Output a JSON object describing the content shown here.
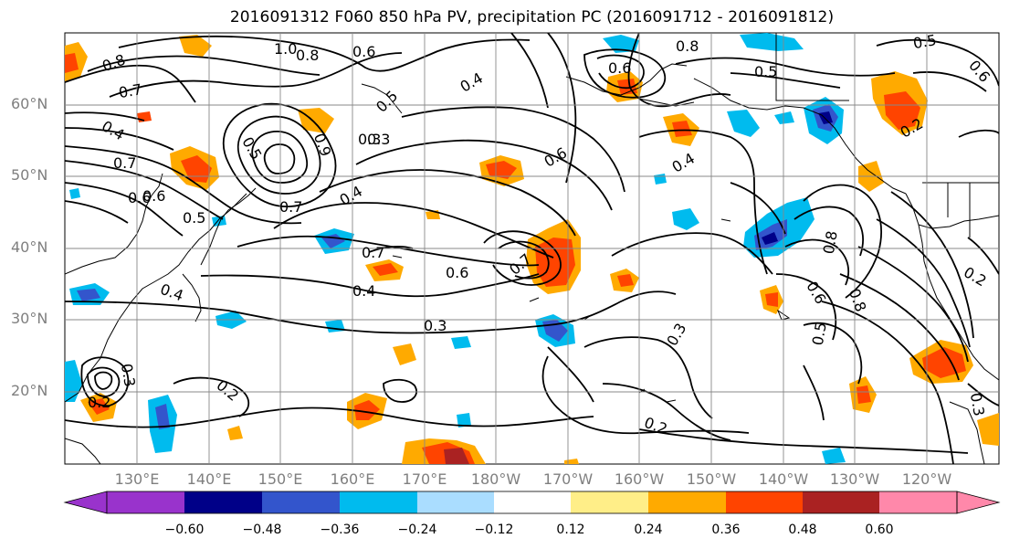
{
  "title": "2016091312 F060 850 hPa PV, precipitation PC (2016091712 - 2016091812)",
  "lat_labels": [
    "60°N",
    "50°N",
    "40°N",
    "30°N",
    "20°N"
  ],
  "lon_labels": [
    "130°E",
    "140°E",
    "150°E",
    "160°E",
    "170°E",
    "180°W",
    "170°W",
    "160°W",
    "150°W",
    "140°W",
    "130°W",
    "120°W"
  ],
  "contour_labels": [
    "1.0",
    "0.8",
    "0.6",
    "0.8",
    "0.5",
    "0.6",
    "0.8",
    "0.7",
    "0.4",
    "0.5",
    "0.3",
    "0.6",
    "0.5",
    "0.9",
    "0.7",
    "0.4",
    "0.6",
    "0.4",
    "0.7",
    "0.6",
    "0.7",
    "0.4",
    "0.3",
    "0.2",
    "0.3",
    "0.8",
    "0.6",
    "0.8",
    "0.5",
    "0.2",
    "0.2",
    "0.3",
    "0.2",
    "0.4",
    "0.7",
    "0.6",
    "0.5",
    "0.4",
    "0.3",
    "0.3",
    "0.2",
    "0.5",
    "0.6"
  ],
  "colorbar": {
    "tick_labels": [
      "−0.60",
      "−0.48",
      "−0.36",
      "−0.24",
      "−0.12",
      "0.12",
      "0.24",
      "0.36",
      "0.48",
      "0.60"
    ],
    "colors": [
      "#9933cc",
      "#000088",
      "#3355cc",
      "#00bbee",
      "#aaddff",
      "#ffffff",
      "#ffee88",
      "#ffaa00",
      "#ff4400",
      "#aa2222",
      "#ff88aa"
    ]
  },
  "colors": {
    "contour": "#000000",
    "grid": "#888888",
    "coast": "#000000"
  }
}
